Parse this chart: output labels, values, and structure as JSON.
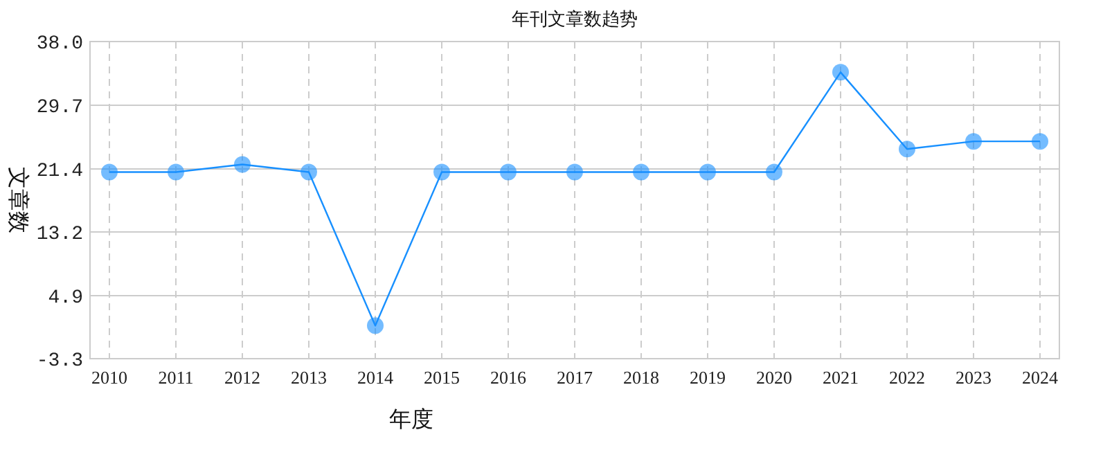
{
  "chart_data": {
    "type": "line",
    "title": "年刊文章数趋势",
    "xlabel": "年度",
    "ylabel": "文章数",
    "categories": [
      "2010",
      "2011",
      "2012",
      "2013",
      "2014",
      "2015",
      "2016",
      "2017",
      "2018",
      "2019",
      "2020",
      "2021",
      "2022",
      "2023",
      "2024"
    ],
    "series": [
      {
        "color": "#1890ff",
        "values": [
          21,
          21,
          22,
          21,
          1,
          21,
          21,
          21,
          21,
          21,
          21,
          34,
          24,
          25,
          25
        ]
      }
    ],
    "ylim": [
      -3.3,
      38.0
    ],
    "yticks": [
      {
        "value": -3.3,
        "label": "-3.3"
      },
      {
        "value": 4.9,
        "label": "4.9"
      },
      {
        "value": 13.2,
        "label": "13.2"
      },
      {
        "value": 21.4,
        "label": "21.4"
      },
      {
        "value": 29.7,
        "label": "29.7"
      },
      {
        "value": 38.0,
        "label": "38.0"
      }
    ],
    "grid": true,
    "marker": "circle",
    "line_style": "solid"
  }
}
